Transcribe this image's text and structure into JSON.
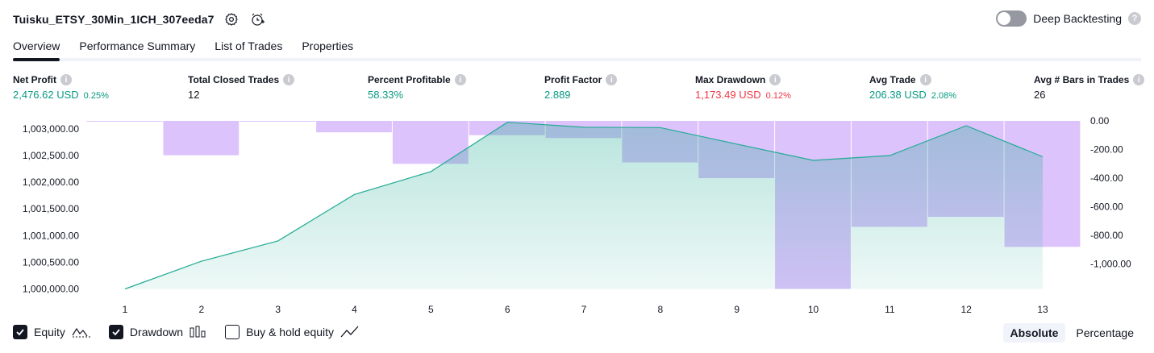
{
  "header": {
    "title": "Tuisku_ETSY_30Min_1ICH_307eeda7",
    "settings_icon": "gear-icon",
    "alert_icon": "add-alert-icon"
  },
  "deep_backtesting": {
    "label": "Deep Backtesting",
    "enabled": false,
    "help": "?"
  },
  "tabs": [
    {
      "label": "Overview",
      "active": true
    },
    {
      "label": "Performance Summary",
      "active": false
    },
    {
      "label": "List of Trades",
      "active": false
    },
    {
      "label": "Properties",
      "active": false
    }
  ],
  "metrics": {
    "net_profit": {
      "label": "Net Profit",
      "value": "2,476.62 USD",
      "sub": "0.25%"
    },
    "total_closed_trades": {
      "label": "Total Closed Trades",
      "value": "12"
    },
    "percent_profitable": {
      "label": "Percent Profitable",
      "value": "58.33%"
    },
    "profit_factor": {
      "label": "Profit Factor",
      "value": "2.889"
    },
    "max_drawdown": {
      "label": "Max Drawdown",
      "value": "1,173.49 USD",
      "sub": "0.12%"
    },
    "avg_trade": {
      "label": "Avg Trade",
      "value": "206.38 USD",
      "sub": "2.08%"
    },
    "avg_bars": {
      "label": "Avg # Bars in Trades",
      "value": "26"
    }
  },
  "colors": {
    "positive": "#089981",
    "negative": "#f23645",
    "equity_line": "#22ab94",
    "drawdown_fill": "#d7b9fc",
    "text": "#131722"
  },
  "chart_data": {
    "type": "line",
    "x": [
      1,
      2,
      3,
      4,
      5,
      6,
      7,
      8,
      9,
      10,
      11,
      12,
      13
    ],
    "series": [
      {
        "name": "Equity",
        "type": "area",
        "axis": "left",
        "values": [
          1000000,
          1000520,
          1000900,
          1001770,
          1002200,
          1003125,
          1003030,
          1003025,
          1002715,
          1002410,
          1002500,
          1003060,
          1002477
        ]
      },
      {
        "name": "Drawdown",
        "type": "bar",
        "axis": "right",
        "values": [
          0,
          -240,
          -5,
          -80,
          -300,
          -100,
          -120,
          -290,
          -400,
          -1173.49,
          -740,
          -670,
          -880
        ]
      }
    ],
    "left_axis": {
      "ticks": [
        "1,003,000.00",
        "1,002,500.00",
        "1,002,000.00",
        "1,001,500.00",
        "1,001,000.00",
        "1,000,500.00",
        "1,000,000.00"
      ],
      "tick_values": [
        1003000,
        1002500,
        1002000,
        1001500,
        1001000,
        1000500,
        1000000
      ]
    },
    "right_axis": {
      "ticks": [
        "0.00",
        "-200.00",
        "-400.00",
        "-600.00",
        "-800.00",
        "-1,000.00"
      ],
      "tick_values": [
        0,
        -200,
        -400,
        -600,
        -800,
        -1000
      ]
    },
    "x_tick_labels": [
      "1",
      "2",
      "3",
      "4",
      "5",
      "6",
      "7",
      "8",
      "9",
      "10",
      "11",
      "12",
      "13"
    ],
    "legend_placement": "bottom-left",
    "grid": false
  },
  "legend": {
    "items": [
      {
        "label": "Equity",
        "checked": true,
        "icon": "equity-line-icon"
      },
      {
        "label": "Drawdown",
        "checked": true,
        "icon": "bars-icon"
      },
      {
        "label": "Buy & hold equity",
        "checked": false,
        "icon": "trend-line-icon"
      }
    ]
  },
  "mode": {
    "absolute": "Absolute",
    "percentage": "Percentage",
    "selected": "Absolute"
  }
}
